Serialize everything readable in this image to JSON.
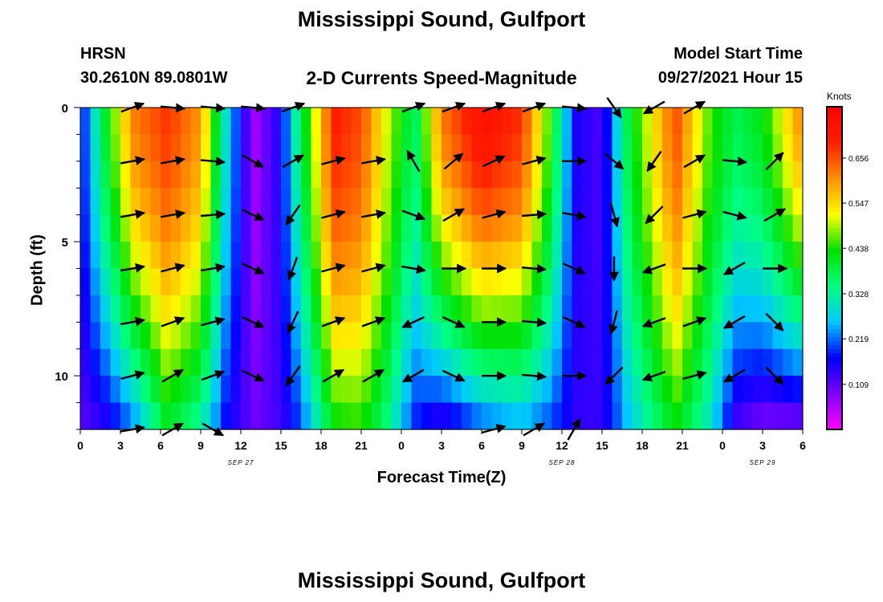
{
  "header": {
    "title": "Mississippi Sound, Gulfport",
    "station": "HRSN",
    "coords": "30.2610N  89.0801W",
    "subtitle": "2-D Currents Speed-Magnitude",
    "model_start_label": "Model Start Time",
    "model_start_time": "09/27/2021 Hour 15"
  },
  "footer": {
    "title": "Mississippi Sound, Gulfport"
  },
  "colorbar": {
    "units": "Knots",
    "tick_labels": [
      "0.656",
      "0.547",
      "0.438",
      "0.328",
      "0.219",
      "0.109"
    ],
    "tick_values": [
      0.656,
      0.547,
      0.438,
      0.328,
      0.219,
      0.109
    ],
    "range": [
      0,
      0.78
    ],
    "colors": [
      "#ff00ff",
      "#8000ff",
      "#0000ff",
      "#00c8ff",
      "#00ff80",
      "#00e000",
      "#ffff00",
      "#ff9000",
      "#ff2000",
      "#ff0000"
    ]
  },
  "chart_data": {
    "type": "heatmap",
    "title": "2-D Currents Speed-Magnitude",
    "xlabel": "Forecast Time(Z)",
    "ylabel": "Depth (ft)",
    "x_tick_labels": [
      "0",
      "3",
      "6",
      "9",
      "12",
      "15",
      "18",
      "21",
      "0",
      "3",
      "6",
      "9",
      "12",
      "15",
      "18",
      "21",
      "0",
      "3",
      "6"
    ],
    "x_hours": [
      0,
      3,
      6,
      9,
      12,
      15,
      18,
      21,
      24,
      27,
      30,
      33,
      36,
      39,
      42,
      45,
      48,
      51,
      54
    ],
    "date_labels": [
      {
        "text": "SEP 27",
        "hour": 12
      },
      {
        "text": "SEP 28",
        "hour": 36
      },
      {
        "text": "SEP 29",
        "hour": 51
      }
    ],
    "y_tick_labels": [
      "0",
      "5",
      "10"
    ],
    "y_ticks": [
      0,
      5,
      10
    ],
    "xlim": [
      0,
      54
    ],
    "ylim": [
      0,
      12
    ],
    "y_inverted": true,
    "depth_rows_ft": [
      0.5,
      1.5,
      2.5,
      3.5,
      4.5,
      5.5,
      6.5,
      7.5,
      8.5,
      9.5,
      10.5,
      11.5
    ],
    "speed_profiles_knots": [
      {
        "hour": 0,
        "surface": 0.16,
        "bottom": 0.11
      },
      {
        "hour": 2,
        "surface": 0.42,
        "bottom": 0.14
      },
      {
        "hour": 4,
        "surface": 0.62,
        "bottom": 0.22
      },
      {
        "hour": 6.5,
        "surface": 0.68,
        "bottom": 0.4
      },
      {
        "hour": 9,
        "surface": 0.6,
        "bottom": 0.32
      },
      {
        "hour": 11,
        "surface": 0.28,
        "bottom": 0.16
      },
      {
        "hour": 13,
        "surface": 0.06,
        "bottom": 0.1
      },
      {
        "hour": 15,
        "surface": 0.16,
        "bottom": 0.13
      },
      {
        "hour": 16.5,
        "surface": 0.38,
        "bottom": 0.2
      },
      {
        "hour": 19,
        "surface": 0.7,
        "bottom": 0.42
      },
      {
        "hour": 21,
        "surface": 0.66,
        "bottom": 0.44
      },
      {
        "hour": 23,
        "surface": 0.5,
        "bottom": 0.34
      },
      {
        "hour": 25,
        "surface": 0.36,
        "bottom": 0.18
      },
      {
        "hour": 27,
        "surface": 0.62,
        "bottom": 0.12
      },
      {
        "hour": 30,
        "surface": 0.74,
        "bottom": 0.2
      },
      {
        "hour": 33,
        "surface": 0.68,
        "bottom": 0.24
      },
      {
        "hour": 35,
        "surface": 0.46,
        "bottom": 0.2
      },
      {
        "hour": 37,
        "surface": 0.16,
        "bottom": 0.14
      },
      {
        "hour": 39,
        "surface": 0.12,
        "bottom": 0.14
      },
      {
        "hour": 41,
        "surface": 0.4,
        "bottom": 0.26
      },
      {
        "hour": 44.5,
        "surface": 0.66,
        "bottom": 0.42
      },
      {
        "hour": 47,
        "surface": 0.46,
        "bottom": 0.3
      },
      {
        "hour": 49,
        "surface": 0.38,
        "bottom": 0.12
      },
      {
        "hour": 51,
        "surface": 0.42,
        "bottom": 0.08
      },
      {
        "hour": 54,
        "surface": 0.62,
        "bottom": 0.08
      }
    ],
    "vector_depths_ft": [
      0,
      2,
      4,
      6,
      8,
      10,
      12
    ],
    "vector_hours": [
      3,
      6,
      9,
      12,
      15,
      18,
      21,
      24,
      27,
      30,
      33,
      36,
      39,
      42,
      45,
      48,
      51
    ],
    "vector_direction_deg": [
      [
        70,
        95,
        95,
        95,
        70,
        null,
        null,
        70,
        70,
        70,
        70,
        95,
        145,
        240,
        60,
        null,
        null
      ],
      [
        80,
        80,
        95,
        120,
        60,
        75,
        80,
        330,
        50,
        65,
        75,
        90,
        130,
        215,
        60,
        95,
        45
      ],
      [
        80,
        80,
        85,
        115,
        215,
        75,
        80,
        110,
        60,
        75,
        85,
        100,
        165,
        225,
        75,
        105,
        60
      ],
      [
        80,
        75,
        80,
        115,
        200,
        75,
        75,
        100,
        90,
        90,
        95,
        115,
        180,
        250,
        90,
        240,
        90
      ],
      [
        80,
        70,
        75,
        115,
        205,
        70,
        70,
        245,
        115,
        90,
        95,
        115,
        195,
        250,
        70,
        240,
        135
      ],
      [
        75,
        60,
        70,
        115,
        215,
        60,
        60,
        240,
        115,
        90,
        95,
        90,
        225,
        250,
        75,
        240,
        135
      ],
      [
        80,
        60,
        120,
        null,
        null,
        null,
        null,
        null,
        null,
        75,
        60,
        30,
        null,
        null,
        null,
        null,
        null
      ]
    ]
  }
}
